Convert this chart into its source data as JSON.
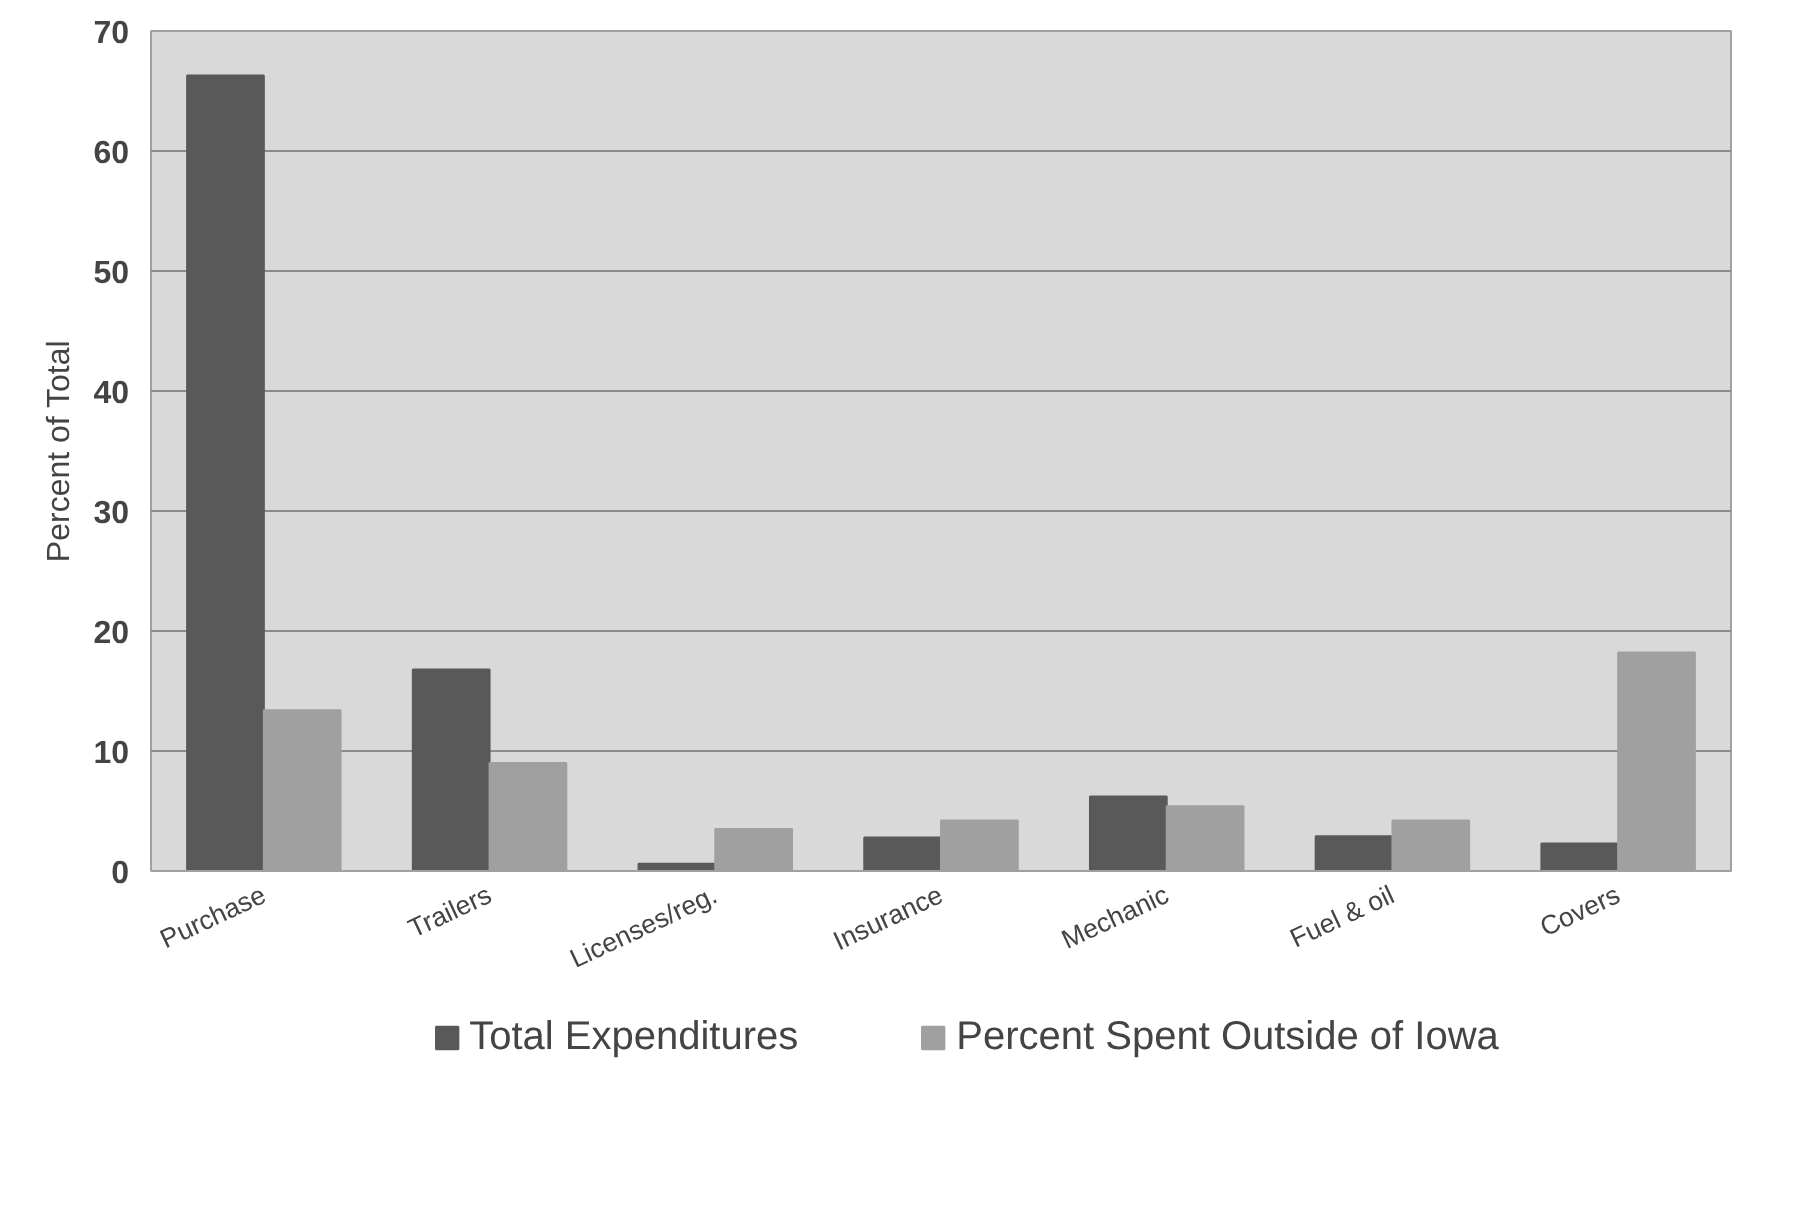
{
  "chart_data": {
    "type": "bar",
    "ylabel": "Percent of Total",
    "categories": [
      "Purchase",
      "Trailers",
      "Licenses/reg.",
      "Insurance",
      "Mechanic",
      "Fuel & oil",
      "Covers"
    ],
    "series": [
      {
        "name": "Total Expenditures",
        "color": "#595959",
        "values": [
          66.3,
          16.8,
          0.6,
          2.8,
          6.2,
          2.9,
          2.3
        ]
      },
      {
        "name": "Percent Spent Outside of Iowa",
        "color": "#a0a0a0",
        "values": [
          13.4,
          9.0,
          3.5,
          4.2,
          5.4,
          4.2,
          18.2
        ]
      }
    ],
    "ylim": [
      0,
      70
    ],
    "yticks": [
      0,
      10,
      20,
      30,
      40,
      50,
      60,
      70
    ],
    "grid": "y",
    "legend": "bottom"
  }
}
